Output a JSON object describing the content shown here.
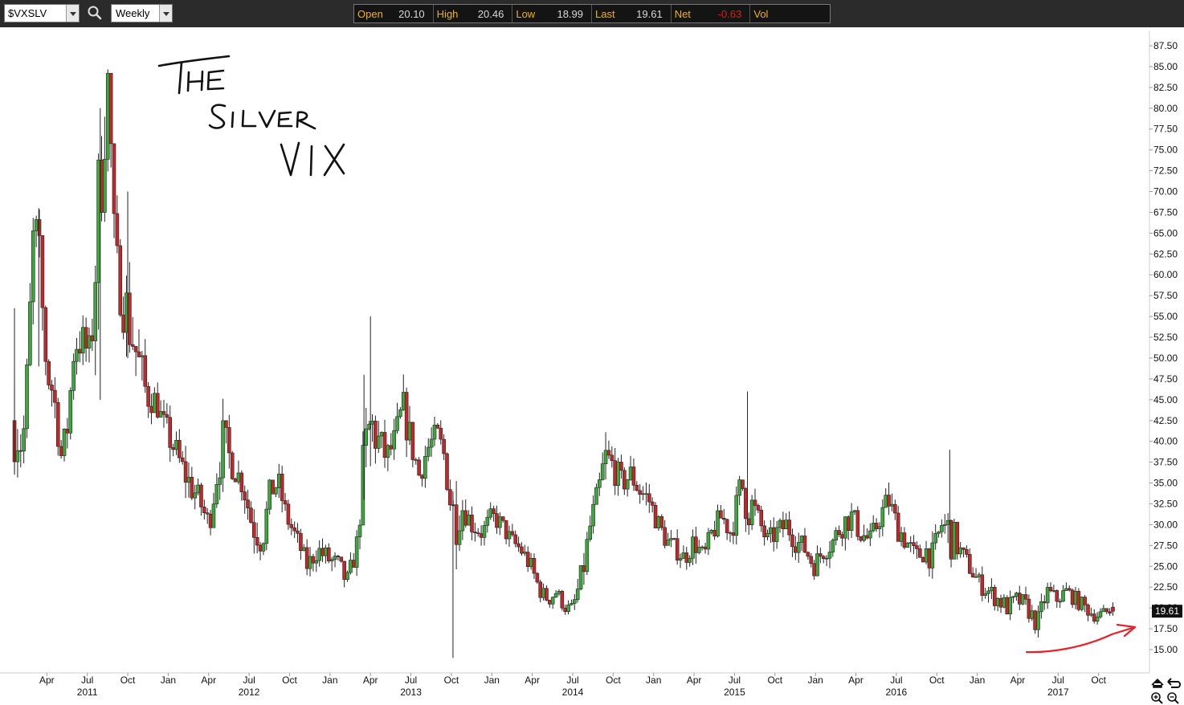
{
  "toolbar": {
    "symbol": "$VXSLV",
    "period": "Weekly",
    "icons": [
      "chevron-down-icon",
      "search-icon",
      "chevron-down-icon"
    ]
  },
  "quote": {
    "open_label": "Open",
    "open_value": "20.10",
    "high_label": "High",
    "high_value": "20.46",
    "low_label": "Low",
    "low_value": "18.99",
    "last_label": "Last",
    "last_value": "19.61",
    "net_label": "Net",
    "net_value": "-0.63",
    "vol_label": "Vol",
    "vol_value": ""
  },
  "annotation": {
    "handwritten_title": "The Silver VIX",
    "arrow_color": "#e8202a"
  },
  "colors": {
    "up_candle": "#3aa83a",
    "down_candle": "#c0282a",
    "toolbar_bg": "#2b2b2b",
    "quote_label": "#f0b400",
    "net_negative": "#e01818"
  },
  "chart_data": {
    "type": "candlestick",
    "symbol": "$VXSLV",
    "interval": "Weekly",
    "ylim": [
      13.5,
      89.5
    ],
    "yticks": [
      "15.00",
      "17.50",
      "20.00",
      "22.50",
      "25.00",
      "27.50",
      "30.00",
      "32.50",
      "35.00",
      "37.50",
      "40.00",
      "42.50",
      "45.00",
      "47.50",
      "50.00",
      "52.50",
      "55.00",
      "57.50",
      "60.00",
      "62.50",
      "65.00",
      "67.50",
      "70.00",
      "72.50",
      "75.00",
      "77.50",
      "80.00",
      "82.50",
      "85.00",
      "87.50"
    ],
    "last_price_marker": "19.61",
    "x_axis": {
      "months": [
        {
          "label": "Apr",
          "x": 2011.25
        },
        {
          "label": "Jul",
          "x": 2011.5
        },
        {
          "label": "Oct",
          "x": 2011.75
        },
        {
          "label": "Jan",
          "x": 2012.0
        },
        {
          "label": "Apr",
          "x": 2012.25
        },
        {
          "label": "Jul",
          "x": 2012.5
        },
        {
          "label": "Oct",
          "x": 2012.75
        },
        {
          "label": "Jan",
          "x": 2013.0
        },
        {
          "label": "Apr",
          "x": 2013.25
        },
        {
          "label": "Jul",
          "x": 2013.5
        },
        {
          "label": "Oct",
          "x": 2013.75
        },
        {
          "label": "Jan",
          "x": 2014.0
        },
        {
          "label": "Apr",
          "x": 2014.25
        },
        {
          "label": "Jul",
          "x": 2014.5
        },
        {
          "label": "Oct",
          "x": 2014.75
        },
        {
          "label": "Jan",
          "x": 2015.0
        },
        {
          "label": "Apr",
          "x": 2015.25
        },
        {
          "label": "Jul",
          "x": 2015.5
        },
        {
          "label": "Oct",
          "x": 2015.75
        },
        {
          "label": "Jan",
          "x": 2016.0
        },
        {
          "label": "Apr",
          "x": 2016.25
        },
        {
          "label": "Jul",
          "x": 2016.5
        },
        {
          "label": "Oct",
          "x": 2016.75
        },
        {
          "label": "Jan",
          "x": 2017.0
        },
        {
          "label": "Apr",
          "x": 2017.25
        },
        {
          "label": "Jul",
          "x": 2017.5
        },
        {
          "label": "Oct",
          "x": 2017.75
        }
      ],
      "years": [
        {
          "label": "2011",
          "x": 2011.5
        },
        {
          "label": "2012",
          "x": 2012.5
        },
        {
          "label": "2013",
          "x": 2013.5
        },
        {
          "label": "2014",
          "x": 2014.5
        },
        {
          "label": "2015",
          "x": 2015.5
        },
        {
          "label": "2016",
          "x": 2016.5
        },
        {
          "label": "2017",
          "x": 2017.5
        }
      ],
      "range": [
        2011.03,
        2017.98
      ]
    },
    "anchors": [
      [
        2011.05,
        42.5,
        56,
        36
      ],
      [
        2011.1,
        39,
        44,
        35
      ],
      [
        2011.13,
        48,
        54,
        40
      ],
      [
        2011.17,
        66,
        72,
        57
      ],
      [
        2011.2,
        62,
        68,
        49
      ],
      [
        2011.25,
        48,
        53,
        46
      ],
      [
        2011.29,
        46,
        52,
        42
      ],
      [
        2011.34,
        38,
        43,
        35
      ],
      [
        2011.38,
        42,
        47,
        38
      ],
      [
        2011.42,
        52,
        58,
        46
      ],
      [
        2011.47,
        52,
        58,
        48
      ],
      [
        2011.52,
        50,
        56,
        45
      ],
      [
        2011.58,
        72,
        80,
        45
      ],
      [
        2011.63,
        84,
        88,
        75
      ],
      [
        2011.67,
        62,
        70,
        55
      ],
      [
        2011.71,
        58,
        66,
        52
      ],
      [
        2011.75,
        55,
        70,
        50
      ],
      [
        2011.81,
        50,
        58,
        45
      ],
      [
        2011.86,
        46,
        55,
        42
      ],
      [
        2011.92,
        45,
        48,
        42
      ],
      [
        2011.97,
        42,
        45,
        38
      ],
      [
        2012.02,
        40,
        45,
        36
      ],
      [
        2012.08,
        37,
        42,
        34
      ],
      [
        2012.13,
        35,
        40,
        31
      ],
      [
        2012.19,
        33,
        37,
        30
      ],
      [
        2012.25,
        30,
        35,
        28
      ],
      [
        2012.3,
        36,
        42,
        33
      ],
      [
        2012.34,
        40,
        48,
        35
      ],
      [
        2012.4,
        37,
        40,
        33
      ],
      [
        2012.46,
        35,
        38,
        31
      ],
      [
        2012.52,
        30,
        35,
        26
      ],
      [
        2012.58,
        28,
        33,
        25
      ],
      [
        2012.63,
        34,
        37,
        30
      ],
      [
        2012.68,
        35,
        38,
        31
      ],
      [
        2012.73,
        31,
        34,
        28
      ],
      [
        2012.8,
        28,
        31,
        26
      ],
      [
        2012.86,
        25,
        28,
        23
      ],
      [
        2012.92,
        27,
        30,
        24
      ],
      [
        2012.98,
        26,
        29,
        23
      ],
      [
        2013.05,
        25,
        28,
        22
      ],
      [
        2013.11,
        23,
        26,
        20
      ],
      [
        2013.17,
        28,
        31,
        25
      ],
      [
        2013.21,
        38,
        48,
        33
      ],
      [
        2013.25,
        42,
        55,
        37
      ],
      [
        2013.3,
        40,
        45,
        35
      ],
      [
        2013.35,
        38,
        42,
        34
      ],
      [
        2013.4,
        40,
        44,
        36
      ],
      [
        2013.45,
        44,
        48,
        38
      ],
      [
        2013.5,
        40,
        44,
        35
      ],
      [
        2013.55,
        36,
        40,
        33
      ],
      [
        2013.6,
        39,
        42,
        35
      ],
      [
        2013.66,
        41,
        44,
        38
      ],
      [
        2013.71,
        38,
        42,
        35
      ],
      [
        2013.76,
        31,
        34,
        14
      ],
      [
        2013.82,
        32,
        35,
        29
      ],
      [
        2013.88,
        30,
        34,
        28
      ],
      [
        2013.94,
        29,
        32,
        27
      ],
      [
        2014.0,
        31,
        33,
        28
      ],
      [
        2014.06,
        30,
        32,
        27
      ],
      [
        2014.12,
        28,
        31,
        26
      ],
      [
        2014.18,
        27,
        29,
        24
      ],
      [
        2014.24,
        25,
        27,
        22
      ],
      [
        2014.3,
        22,
        24,
        20
      ],
      [
        2014.35,
        21,
        23,
        19
      ],
      [
        2014.4,
        22,
        24,
        20
      ],
      [
        2014.45,
        20,
        22,
        19
      ],
      [
        2014.5,
        20,
        22,
        19
      ],
      [
        2014.56,
        24,
        28,
        20
      ],
      [
        2014.61,
        30,
        34,
        27
      ],
      [
        2014.66,
        34,
        38,
        31
      ],
      [
        2014.7,
        38,
        43,
        33
      ],
      [
        2014.75,
        37,
        40,
        32
      ],
      [
        2014.8,
        35,
        38,
        31
      ],
      [
        2014.86,
        36,
        39,
        32
      ],
      [
        2014.92,
        34,
        38,
        30
      ],
      [
        2014.97,
        33,
        36,
        30
      ],
      [
        2015.03,
        30,
        33,
        27
      ],
      [
        2015.08,
        28,
        31,
        26
      ],
      [
        2015.14,
        27,
        30,
        25
      ],
      [
        2015.19,
        26,
        29,
        24
      ],
      [
        2015.25,
        28,
        31,
        25
      ],
      [
        2015.31,
        26,
        28,
        23
      ],
      [
        2015.36,
        29,
        32,
        26
      ],
      [
        2015.42,
        31,
        34,
        28
      ],
      [
        2015.48,
        29,
        32,
        26
      ],
      [
        2015.54,
        35,
        38,
        30
      ],
      [
        2015.58,
        33,
        46,
        30
      ],
      [
        2015.64,
        31,
        34,
        28
      ],
      [
        2015.7,
        28,
        31,
        26
      ],
      [
        2015.76,
        29,
        32,
        26
      ],
      [
        2015.82,
        30,
        33,
        27
      ],
      [
        2015.88,
        28,
        31,
        25
      ],
      [
        2015.94,
        27,
        30,
        24
      ],
      [
        2015.99,
        25,
        28,
        23
      ],
      [
        2016.05,
        27,
        30,
        24
      ],
      [
        2016.11,
        28,
        31,
        25
      ],
      [
        2016.16,
        30,
        34,
        27
      ],
      [
        2016.22,
        31,
        35,
        28
      ],
      [
        2016.28,
        29,
        32,
        26
      ],
      [
        2016.34,
        28,
        31,
        25
      ],
      [
        2016.4,
        31,
        34,
        28
      ],
      [
        2016.45,
        33,
        37,
        30
      ],
      [
        2016.5,
        30,
        34,
        27
      ],
      [
        2016.56,
        28,
        31,
        25
      ],
      [
        2016.62,
        26,
        29,
        23
      ],
      [
        2016.68,
        27,
        30,
        24
      ],
      [
        2016.72,
        26,
        30,
        23
      ],
      [
        2016.78,
        30,
        33,
        27
      ],
      [
        2016.83,
        29,
        39,
        26
      ],
      [
        2016.89,
        27,
        30,
        25
      ],
      [
        2016.95,
        25,
        28,
        23
      ],
      [
        2017.01,
        23,
        26,
        21
      ],
      [
        2017.07,
        22,
        25,
        20
      ],
      [
        2017.13,
        21,
        24,
        19
      ],
      [
        2017.19,
        20,
        23,
        18
      ],
      [
        2017.25,
        21,
        24,
        19
      ],
      [
        2017.31,
        20,
        23,
        18
      ],
      [
        2017.37,
        18,
        21,
        16
      ],
      [
        2017.43,
        22,
        24,
        19
      ],
      [
        2017.49,
        21,
        23,
        19
      ],
      [
        2017.55,
        22,
        24,
        20
      ],
      [
        2017.61,
        21,
        23,
        19
      ],
      [
        2017.67,
        20,
        22,
        18
      ],
      [
        2017.73,
        19,
        21,
        18
      ],
      [
        2017.79,
        19.5,
        21,
        18.5
      ],
      [
        2017.84,
        19.6,
        20.5,
        19
      ]
    ],
    "annotations": [
      {
        "type": "handwritten_text",
        "text": "The Silver VIX",
        "position": "top-left"
      },
      {
        "type": "hand_drawn_arrow",
        "color": "#e8202a",
        "position": "bottom-right",
        "points_to": "recent lows"
      }
    ]
  }
}
